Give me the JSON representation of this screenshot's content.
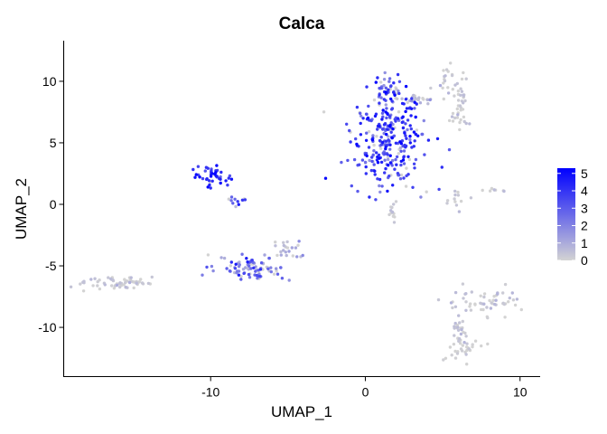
{
  "chart_data": {
    "type": "scatter",
    "title": "Calca",
    "xlabel": "UMAP_1",
    "ylabel": "UMAP_2",
    "xlim": [
      -19.5,
      11.3
    ],
    "ylim": [
      -14,
      13.3
    ],
    "xticks": [
      -10,
      0,
      10
    ],
    "yticks": [
      10,
      5,
      0,
      -5,
      -10
    ],
    "grid": false,
    "color_scale": {
      "low": "#d3d3d3",
      "high": "#0000ff",
      "min": 0,
      "max": 5.3,
      "ticks": [
        0,
        1,
        2,
        3,
        4,
        5
      ],
      "legend_position": "right"
    },
    "clusters": [
      {
        "cx": 1.5,
        "cy": 5.2,
        "sx": 1.2,
        "sy": 2.0,
        "n": 290,
        "expr_mean": 3.6,
        "expr_sd": 1.0
      },
      {
        "cx": 1.3,
        "cy": 9.3,
        "sx": 0.5,
        "sy": 0.5,
        "n": 35,
        "expr_mean": 3.0,
        "expr_sd": 1.2
      },
      {
        "cx": 3.2,
        "cy": 8.6,
        "sx": 0.9,
        "sy": 0.3,
        "n": 30,
        "expr_mean": 0.5,
        "expr_sd": 0.6
      },
      {
        "cx": 5.5,
        "cy": 10.2,
        "sx": 0.6,
        "sy": 0.6,
        "n": 20,
        "expr_mean": 0.2,
        "expr_sd": 0.3
      },
      {
        "cx": 6.1,
        "cy": 8.4,
        "sx": 0.3,
        "sy": 0.8,
        "n": 25,
        "expr_mean": 0.2,
        "expr_sd": 0.3
      },
      {
        "cx": 6.2,
        "cy": 7.1,
        "sx": 0.4,
        "sy": 0.2,
        "n": 12,
        "expr_mean": 0.2,
        "expr_sd": 0.3
      },
      {
        "cx": 1.8,
        "cy": -0.5,
        "sx": 0.2,
        "sy": 0.5,
        "n": 12,
        "expr_mean": 0.2,
        "expr_sd": 0.3
      },
      {
        "cx": 5.8,
        "cy": 0.4,
        "sx": 0.5,
        "sy": 0.5,
        "n": 12,
        "expr_mean": 0.3,
        "expr_sd": 0.3
      },
      {
        "cx": 8.3,
        "cy": 1.1,
        "sx": 0.5,
        "sy": 0.08,
        "n": 8,
        "expr_mean": 0.2,
        "expr_sd": 0.3
      },
      {
        "cx": -9.8,
        "cy": 2.3,
        "sx": 0.6,
        "sy": 0.4,
        "n": 45,
        "expr_mean": 4.2,
        "expr_sd": 0.8
      },
      {
        "cx": -8.3,
        "cy": 0.3,
        "sx": 0.5,
        "sy": 0.15,
        "n": 12,
        "expr_mean": 2.8,
        "expr_sd": 1.2
      },
      {
        "cx": -7.4,
        "cy": -5.3,
        "sx": 1.2,
        "sy": 0.55,
        "n": 90,
        "expr_mean": 2.4,
        "expr_sd": 1.3
      },
      {
        "cx": -5.0,
        "cy": -3.6,
        "sx": 0.6,
        "sy": 0.4,
        "n": 20,
        "expr_mean": 0.6,
        "expr_sd": 0.6
      },
      {
        "cx": -15.8,
        "cy": -6.4,
        "sx": 1.1,
        "sy": 0.3,
        "n": 60,
        "expr_mean": 0.15,
        "expr_sd": 0.3
      },
      {
        "cx": 7.7,
        "cy": -7.8,
        "sx": 1.2,
        "sy": 0.55,
        "n": 55,
        "expr_mean": 0.25,
        "expr_sd": 0.4
      },
      {
        "cx": 6.1,
        "cy": -10.0,
        "sx": 0.25,
        "sy": 0.6,
        "n": 18,
        "expr_mean": 0.2,
        "expr_sd": 0.3
      },
      {
        "cx": 6.2,
        "cy": -11.7,
        "sx": 0.5,
        "sy": 0.6,
        "n": 35,
        "expr_mean": 0.15,
        "expr_sd": 0.3
      }
    ]
  }
}
